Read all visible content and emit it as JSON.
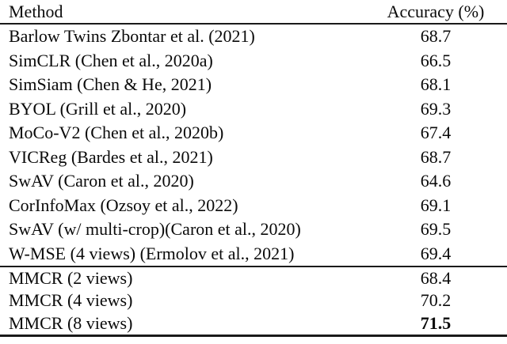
{
  "table": {
    "title_semantic": "self-supervised learning ImageNet linear evaluation results",
    "columns": {
      "method": "Method",
      "accuracy": "Accuracy (%)"
    },
    "rows": [
      {
        "method": "Barlow Twins Zbontar et al. (2021)",
        "accuracy": "68.7",
        "bold": false
      },
      {
        "method": "SimCLR (Chen et al., 2020a)",
        "accuracy": "66.5",
        "bold": false
      },
      {
        "method": "SimSiam (Chen & He, 2021)",
        "accuracy": "68.1",
        "bold": false
      },
      {
        "method": "BYOL (Grill et al., 2020)",
        "accuracy": "69.3",
        "bold": false
      },
      {
        "method": "MoCo-V2 (Chen et al., 2020b)",
        "accuracy": "67.4",
        "bold": false
      },
      {
        "method": "VICReg (Bardes et al., 2021)",
        "accuracy": "68.7",
        "bold": false
      },
      {
        "method": "SwAV (Caron et al., 2020)",
        "accuracy": "64.6",
        "bold": false
      },
      {
        "method": "CorInfoMax (Ozsoy et al., 2022)",
        "accuracy": "69.1",
        "bold": false
      },
      {
        "method": "SwAV (w/ multi-crop)(Caron et al., 2020)",
        "accuracy": "69.5",
        "bold": false
      },
      {
        "method": "W-MSE (4 views) (Ermolov et al., 2021)",
        "accuracy": "69.4",
        "bold": false
      },
      {
        "method": "MMCR (2 views)",
        "accuracy": "68.4",
        "bold": false
      },
      {
        "method": "MMCR (4 views)",
        "accuracy": "70.2",
        "bold": false
      },
      {
        "method": "MMCR (8 views)",
        "accuracy": "71.5",
        "bold": true
      }
    ],
    "colors": {
      "text": "#0a0a0a",
      "rule": "#1a1a1a",
      "background": "#ffffff"
    }
  }
}
